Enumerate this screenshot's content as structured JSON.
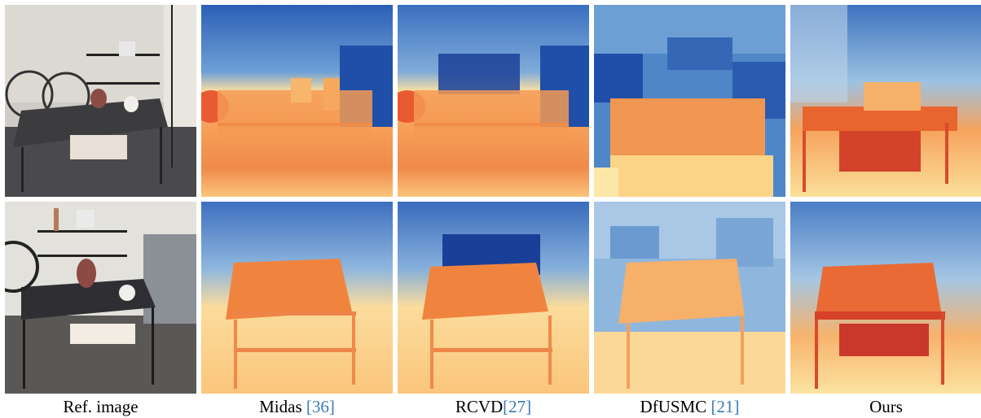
{
  "figure": {
    "columns": [
      {
        "label": "Ref. image",
        "cite": ""
      },
      {
        "label": "Midas ",
        "cite": "[36]",
        "cite_num": "36"
      },
      {
        "label": "RCVD",
        "cite": "[27]",
        "cite_num": "27"
      },
      {
        "label": "DfUSMC ",
        "cite": "[21]",
        "cite_num": "21"
      },
      {
        "label": "Ours",
        "cite": ""
      }
    ],
    "rows": 2,
    "colormap": {
      "near": "#e8552c",
      "mid": "#fbe3a6",
      "far": "#1f4fa8"
    }
  }
}
